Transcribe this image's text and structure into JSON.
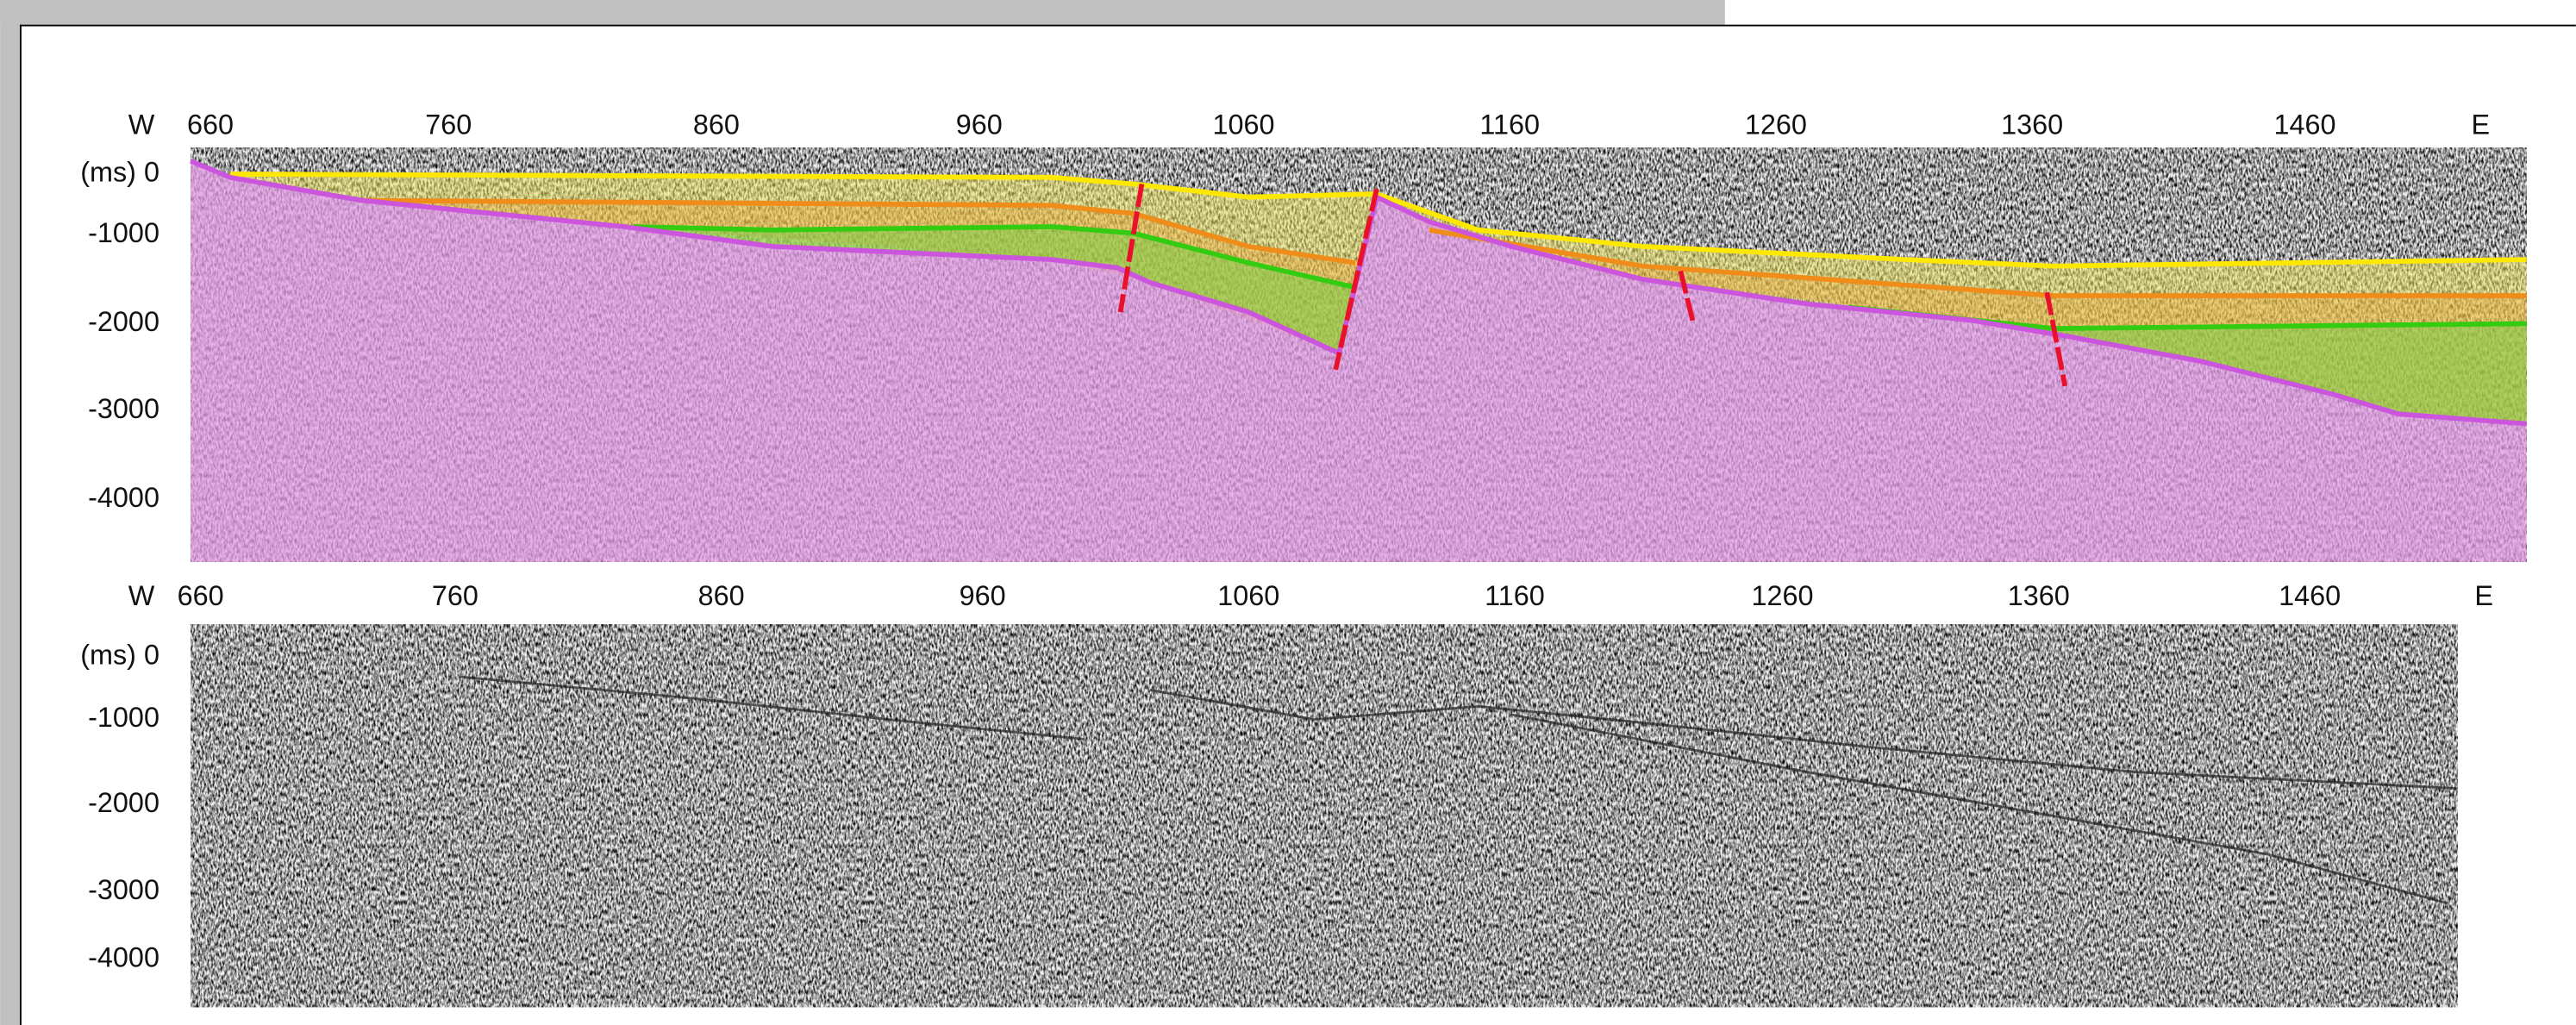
{
  "panels": [
    {
      "direction_labels": [
        "W",
        "E"
      ],
      "x_labels": [
        "660",
        "760",
        "860",
        "960",
        "1060",
        "1160",
        "1260",
        "1360",
        "1460"
      ],
      "y_labels": [
        "(ms) 0",
        "-1000",
        "-2000",
        "-3000",
        "-4000"
      ]
    },
    {
      "direction_labels": [
        "W",
        "E"
      ],
      "x_labels": [
        "660",
        "760",
        "860",
        "960",
        "1060",
        "1160",
        "1260",
        "1360",
        "1460"
      ],
      "y_labels": [
        "(ms) 0",
        "-1000",
        "-2000",
        "-3000",
        "-4000"
      ]
    }
  ]
}
